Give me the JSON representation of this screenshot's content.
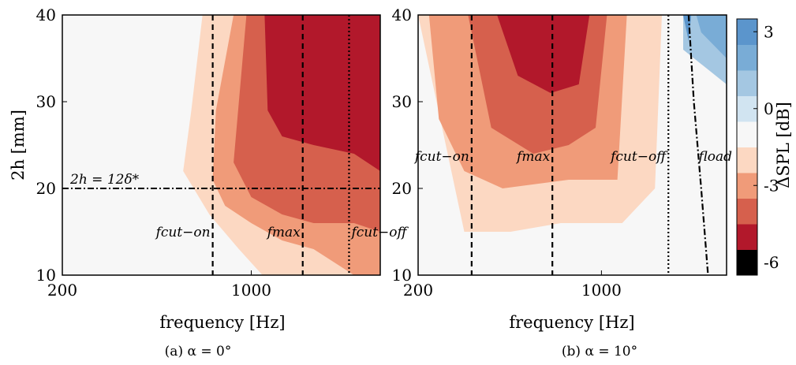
{
  "figure": {
    "captions": [
      "(a) α = 0°",
      "(b) α = 10°"
    ]
  },
  "colors": {
    "levels": [
      "#2166ac",
      "#3274b9",
      "#4383c2",
      "#5b95cc",
      "#79acd6",
      "#a4c7e2",
      "#d1e4f1",
      "#f7f7f7",
      "#fcd8c2",
      "#f09b79",
      "#d6604d",
      "#b2182b"
    ],
    "axes": "#000000"
  },
  "chart_data": [
    {
      "type": "heatmap",
      "subtype": "filled-contour",
      "caption": "(a) α = 0°",
      "xlabel": "frequency [Hz]",
      "ylabel": "2h [mm]",
      "x_scale": "log",
      "xlim": [
        200,
        3000
      ],
      "ylim": [
        10,
        40
      ],
      "x_ticks": [
        200,
        1000
      ],
      "x_tick_labels": [
        "200",
        "1000"
      ],
      "y_ticks": [
        10,
        20,
        30,
        40
      ],
      "y_tick_labels": [
        "10",
        "20",
        "30",
        "40"
      ],
      "colorbar": "none",
      "vertical_lines": [
        {
          "label": "f_cut−on",
          "label_display": "fcut−on",
          "x": 720,
          "style": "dashed"
        },
        {
          "label": "f_max",
          "label_display": "fmax",
          "x": 1550,
          "style": "dashed"
        },
        {
          "label": "f_cut−off",
          "label_display": "fcut−off",
          "x": 2300,
          "style": "dotted"
        }
      ],
      "horizontal_lines": [
        {
          "label": "2h = 12δ*",
          "y": 20,
          "style": "dashdot"
        }
      ],
      "contour_regions": [
        {
          "level": -1,
          "x": [
            480,
            560,
            3000,
            3000,
            480
          ],
          "y": [
            10,
            40,
            40,
            10,
            10
          ]
        },
        {
          "level": -2,
          "x": [
            560,
            600,
            660,
            3000,
            3000,
            1100,
            900,
            700,
            560
          ],
          "y": [
            22,
            29,
            40,
            40,
            10,
            10,
            13,
            17,
            22
          ]
        },
        {
          "level": -3,
          "x": [
            720,
            740,
            860,
            3000,
            3000,
            2400,
            1700,
            1300,
            1000,
            800,
            720
          ],
          "y": [
            21,
            29,
            40,
            40,
            10,
            10,
            13,
            14,
            16,
            18,
            21
          ]
        },
        {
          "level": -4,
          "x": [
            860,
            960,
            3000,
            3000,
            2400,
            1700,
            1300,
            1000,
            860
          ],
          "y": [
            23,
            40,
            40,
            15,
            16,
            16,
            17,
            19,
            23
          ]
        },
        {
          "level": -5,
          "x": [
            1150,
            1120,
            3000,
            3000,
            2400,
            1700,
            1300,
            1150
          ],
          "y": [
            29,
            40,
            40,
            22,
            24,
            25,
            26,
            29
          ]
        }
      ]
    },
    {
      "type": "heatmap",
      "subtype": "filled-contour",
      "caption": "(b) α = 10°",
      "xlabel": "frequency [Hz]",
      "ylabel": "",
      "x_scale": "log",
      "xlim": [
        200,
        3000
      ],
      "ylim": [
        10,
        40
      ],
      "x_ticks": [
        200,
        1000
      ],
      "x_tick_labels": [
        "200",
        "1000"
      ],
      "y_ticks": [
        10,
        20,
        30,
        40
      ],
      "y_tick_labels": [
        "10",
        "20",
        "30",
        "40"
      ],
      "colorbar": {
        "label": "ΔSPL [dB]",
        "ticks": [
          3,
          0,
          -3,
          -6
        ],
        "tick_labels": [
          "3",
          "0",
          "-3",
          "-6"
        ],
        "range": [
          -6.5,
          3.5
        ]
      },
      "vertical_lines": [
        {
          "label": "f_cut−on",
          "label_display": "fcut−on",
          "x": 320,
          "style": "dashed"
        },
        {
          "label": "f_max",
          "label_display": "fmax",
          "x": 650,
          "style": "dashed"
        },
        {
          "label": "f_cut−off",
          "label_display": "fcut−off",
          "x": 1800,
          "style": "dotted"
        }
      ],
      "curves": [
        {
          "label": "f_load",
          "label_display": "fload",
          "style": "dashdot",
          "x": [
            2150,
            2250,
            2400,
            2550
          ],
          "y": [
            40,
            30,
            20,
            10
          ]
        }
      ],
      "contour_regions": [
        {
          "level": -1,
          "x": [
            200,
            3000,
            3000,
            2600,
            1600,
            900,
            500,
            300,
            200
          ],
          "y": [
            40,
            40,
            10,
            10,
            12,
            14,
            12,
            11,
            40
          ]
        },
        {
          "level": -2,
          "x": [
            200,
            1700,
            1600,
            1200,
            700,
            450,
            300,
            200
          ],
          "y": [
            40,
            40,
            20,
            16,
            16,
            15,
            15,
            40
          ]
        },
        {
          "level": -3,
          "x": [
            220,
            1250,
            1150,
            750,
            420,
            300,
            240,
            220
          ],
          "y": [
            40,
            40,
            21,
            21,
            20,
            22,
            28,
            40
          ]
        },
        {
          "level": -4,
          "x": [
            310,
            1050,
            950,
            750,
            550,
            380,
            310
          ],
          "y": [
            40,
            40,
            27,
            25,
            24,
            27,
            40
          ]
        },
        {
          "level": -5,
          "x": [
            400,
            900,
            820,
            640,
            480,
            400
          ],
          "y": [
            40,
            40,
            32,
            31,
            33,
            40
          ]
        },
        {
          "level": 1,
          "x": [
            2050,
            3000,
            3000,
            2050
          ],
          "y": [
            40,
            40,
            32,
            36
          ]
        },
        {
          "level": 2,
          "x": [
            2300,
            3000,
            3000,
            2400
          ],
          "y": [
            40,
            40,
            35,
            38
          ]
        },
        {
          "level": 3,
          "x": [
            2050,
            2200,
            2150
          ],
          "y": [
            40,
            40,
            37
          ]
        }
      ]
    }
  ]
}
